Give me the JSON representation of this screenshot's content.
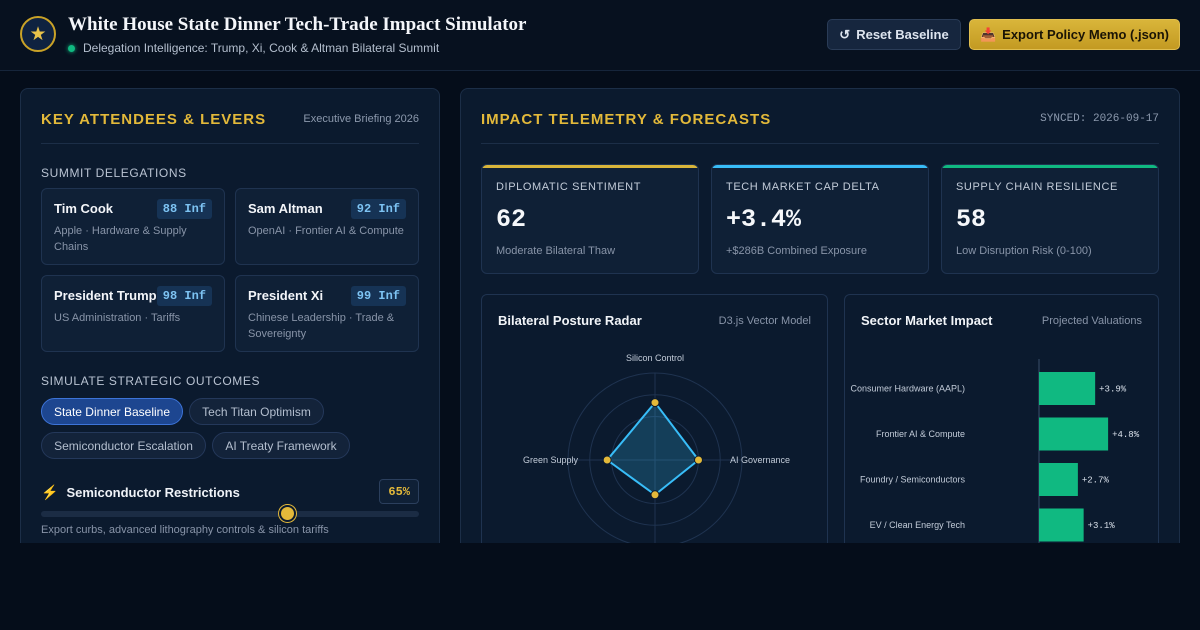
{
  "header": {
    "logo_icon": "star-icon",
    "title": "White House State Dinner Tech-Trade Impact Simulator",
    "subtitle": "Delegation Intelligence: Trump, Xi, Cook & Altman Bilateral Summit",
    "reset_label": "Reset Baseline",
    "export_label": "Export Policy Memo (.json)"
  },
  "left": {
    "title": "KEY ATTENDEES & LEVERS",
    "meta": "Executive Briefing 2026",
    "delegations_label": "SUMMIT DELEGATIONS",
    "delegates": [
      {
        "name": "Tim Cook",
        "influence": "88 Inf",
        "desc": "Apple · Hardware & Supply Chains"
      },
      {
        "name": "Sam Altman",
        "influence": "92 Inf",
        "desc": "OpenAI · Frontier AI & Compute"
      },
      {
        "name": "President Trump",
        "influence": "98 Inf",
        "desc": "US Administration · Tariffs"
      },
      {
        "name": "President Xi",
        "influence": "99 Inf",
        "desc": "Chinese Leadership · Trade & Sovereignty"
      }
    ],
    "outcomes_label": "SIMULATE STRATEGIC OUTCOMES",
    "scenarios": [
      {
        "label": "State Dinner Baseline",
        "active": true
      },
      {
        "label": "Tech Titan Optimism",
        "active": false
      },
      {
        "label": "Semiconductor Escalation",
        "active": false
      },
      {
        "label": "AI Treaty Framework",
        "active": false
      }
    ],
    "slider": {
      "label": "Semiconductor Restrictions",
      "value_text": "65%",
      "value": 0.65,
      "note": "Export curbs, advanced lithography controls & silicon tariffs"
    }
  },
  "right": {
    "title": "IMPACT TELEMETRY & FORECASTS",
    "meta": "SYNCED: 2026-09-17",
    "kpis": [
      {
        "label": "DIPLOMATIC SENTIMENT",
        "value": "62",
        "sub": "Moderate Bilateral Thaw",
        "color": "#d9b53a"
      },
      {
        "label": "TECH MARKET CAP DELTA",
        "value": "+3.4%",
        "sub": "+$286B Combined Exposure",
        "color": "#38bdf8"
      },
      {
        "label": "SUPPLY CHAIN RESILIENCE",
        "value": "58",
        "sub": "Low Disruption Risk (0-100)",
        "color": "#10b981"
      }
    ],
    "radar_title": "Bilateral Posture Radar",
    "radar_meta": "D3.js Vector Model",
    "bars_title": "Sector Market Impact",
    "bars_meta": "Projected Valuations"
  },
  "chart_data": [
    {
      "type": "radar",
      "axes": [
        "Silicon Control",
        "AI Governance",
        "",
        "Green Supply"
      ],
      "values": [
        0.66,
        0.5,
        0.4,
        0.55
      ],
      "max": 1,
      "color": "#38bdf8"
    },
    {
      "type": "bar",
      "orientation": "horizontal",
      "categories": [
        "Consumer Hardware (AAPL)",
        "Frontier AI & Compute",
        "Foundry / Semiconductors",
        "EV / Clean Energy Tech"
      ],
      "values": [
        3.9,
        4.8,
        2.7,
        3.1
      ],
      "labels": [
        "+3.9%",
        "+4.8%",
        "+2.7%",
        "+3.1%"
      ],
      "color": "#10b981"
    }
  ]
}
